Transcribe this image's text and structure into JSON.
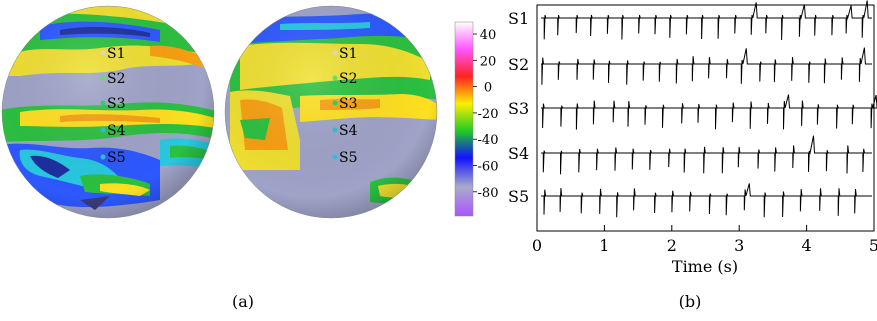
{
  "panel_a": {
    "caption": "(a)",
    "colorbar_ticks": [
      "40",
      "20",
      "0",
      "-20",
      "-40",
      "-60",
      "-80"
    ],
    "sphere_left_labels": [
      "S1",
      "S2",
      "S3",
      "S4",
      "S5"
    ],
    "sphere_right_labels": [
      "S1",
      "S2",
      "S3",
      "S4",
      "S5"
    ],
    "colorbar_colors": [
      "#ffffff",
      "#ff55ff",
      "#ff2222",
      "#ffee00",
      "#22cc22",
      "#1111ff",
      "#aaaacc",
      "#aa55ff"
    ]
  },
  "panel_b": {
    "caption": "(b)",
    "chart_data": {
      "type": "line",
      "xlabel": "Time (s)",
      "xlim": [
        0,
        5
      ],
      "x_ticks": [
        "0",
        "1",
        "2",
        "3",
        "4",
        "5"
      ],
      "series": [
        {
          "name": "S1"
        },
        {
          "name": "S2"
        },
        {
          "name": "S3"
        },
        {
          "name": "S4"
        },
        {
          "name": "S5"
        }
      ]
    }
  }
}
